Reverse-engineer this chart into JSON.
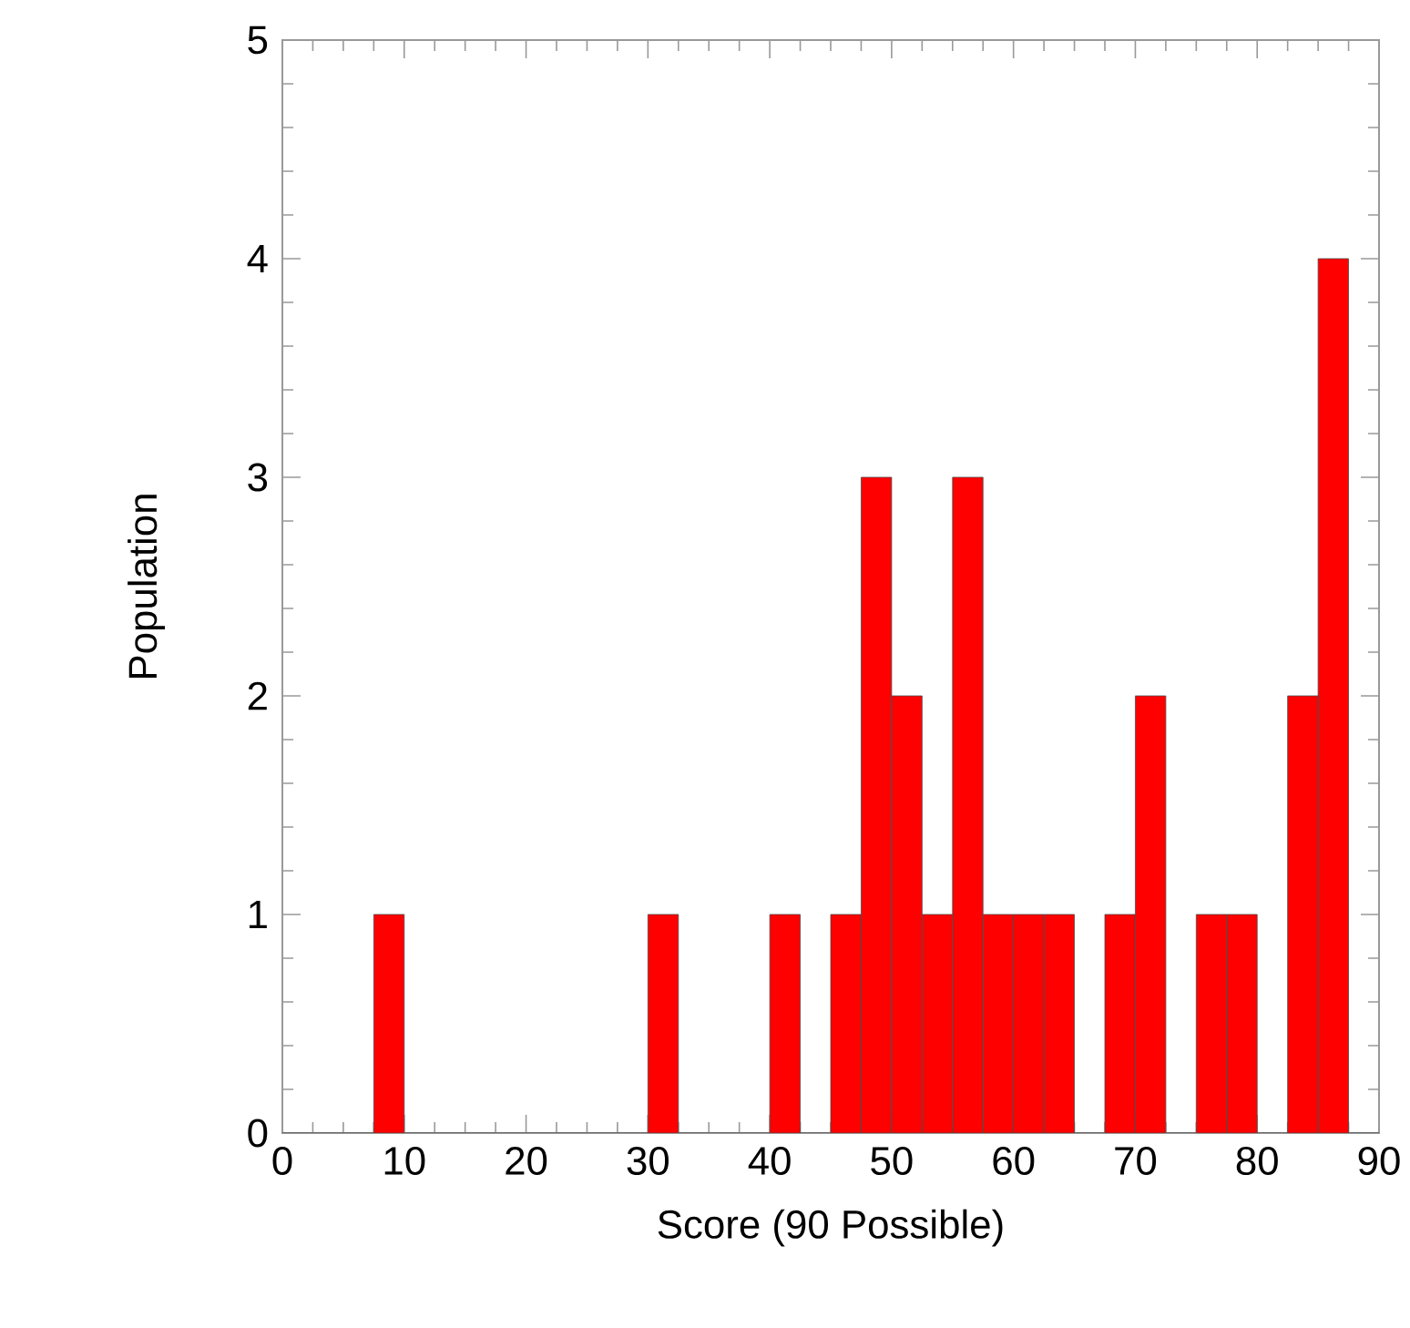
{
  "chart_data": {
    "type": "histogram",
    "xlabel": "Score (90 Possible)",
    "ylabel": "Population",
    "bins": [
      0,
      2.5,
      5,
      7.5,
      10,
      12.5,
      15,
      17.5,
      20,
      22.5,
      25,
      27.5,
      30,
      32.5,
      35,
      37.5,
      40,
      42.5,
      45,
      47.5,
      50,
      52.5,
      55,
      57.5,
      60,
      62.5,
      65,
      67.5,
      70,
      72.5,
      75,
      77.5,
      80,
      82.5,
      85,
      87.5,
      90
    ],
    "values": [
      0,
      0,
      0,
      1,
      0,
      0,
      0,
      0,
      0,
      0,
      0,
      0,
      1,
      0,
      0,
      0,
      1,
      0,
      1,
      3,
      2,
      1,
      3,
      1,
      1,
      1,
      0,
      1,
      2,
      0,
      1,
      1,
      0,
      2,
      4,
      0
    ],
    "color": "#ff0000",
    "xlim": [
      0,
      90
    ],
    "xticks": [
      0,
      10,
      20,
      30,
      40,
      50,
      60,
      70,
      80,
      90
    ],
    "ylim": [
      0,
      5
    ],
    "yticks": [
      0,
      1,
      2,
      3,
      4,
      5
    ],
    "grid": false
  }
}
